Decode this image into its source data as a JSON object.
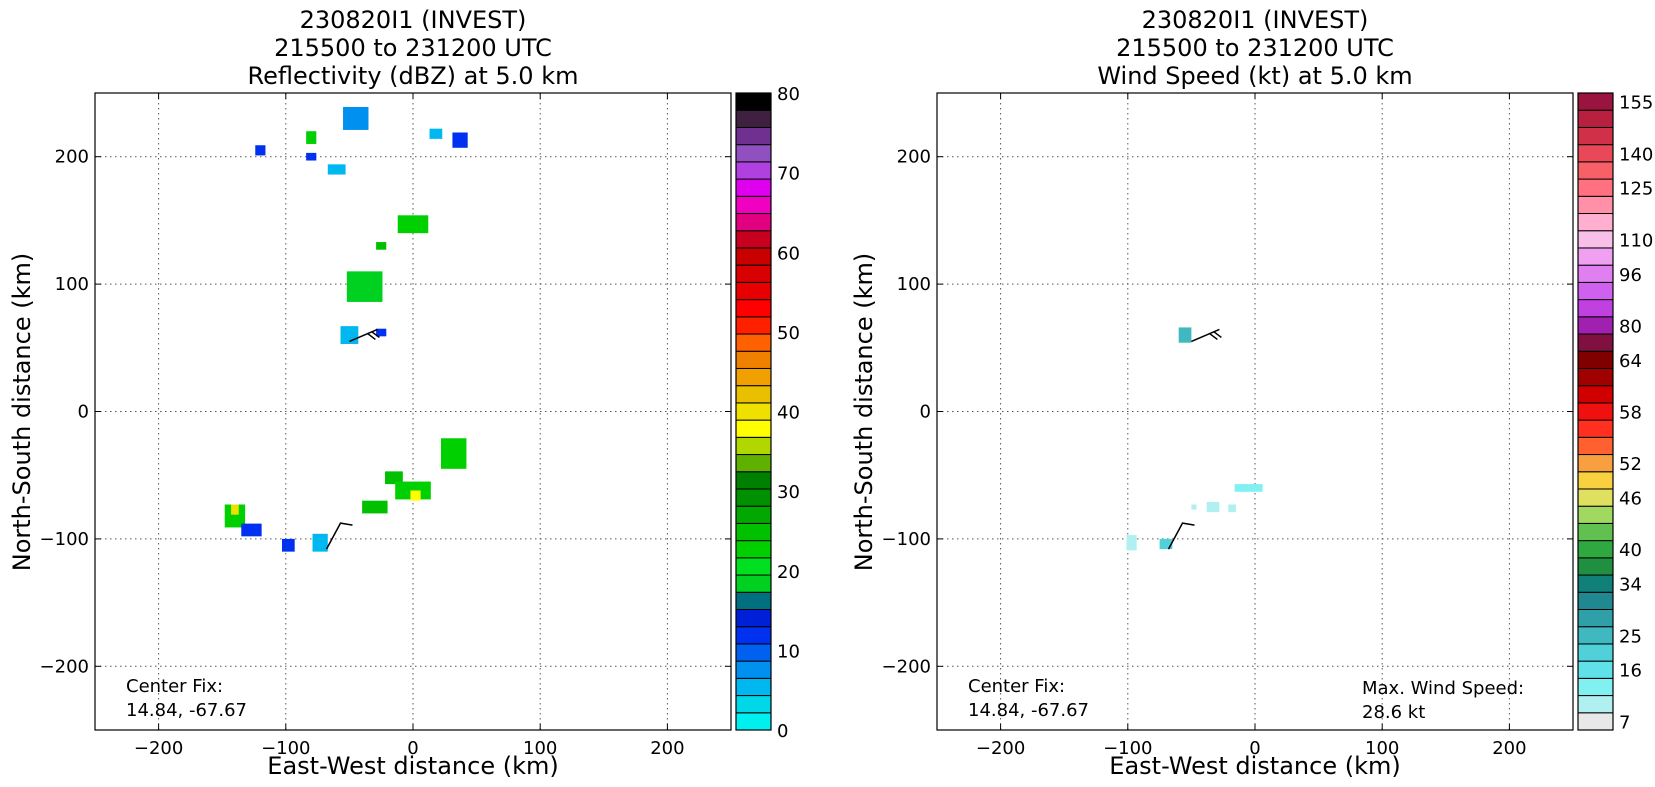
{
  "chart_data": [
    {
      "type": "heatmap",
      "title_lines": [
        "230820I1 (INVEST)",
        "215500 to 231200 UTC",
        "Reflectivity (dBZ) at 5.0 km"
      ],
      "xlabel": "East-West distance (km)",
      "ylabel": "North-South distance (km)",
      "xlim": [
        -250,
        250
      ],
      "ylim": [
        -250,
        250
      ],
      "xticks": [
        -200,
        -100,
        0,
        100,
        200
      ],
      "yticks": [
        -200,
        -100,
        0,
        100,
        200
      ],
      "xtick_labels": [
        "−200",
        "−100",
        "0",
        "100",
        "200"
      ],
      "ytick_labels": [
        "−200",
        "−100",
        "0",
        "100",
        "200"
      ],
      "grid": true,
      "annotation_left": [
        "Center Fix:",
        "14.84, -67.67"
      ],
      "colorbar": {
        "min": 0,
        "max": 80,
        "tick_values": [
          0,
          10,
          20,
          30,
          40,
          50,
          60,
          70,
          80
        ],
        "tick_labels": [
          "0",
          "10",
          "20",
          "30",
          "40",
          "50",
          "60",
          "70",
          "80"
        ],
        "colors": [
          "#00f0f0",
          "#00d8e8",
          "#00b8f0",
          "#0090f0",
          "#0060f0",
          "#0030f0",
          "#0020d8",
          "#007080",
          "#00d020",
          "#00e020",
          "#00d000",
          "#00c000",
          "#00a800",
          "#009000",
          "#008000",
          "#60b000",
          "#b0d800",
          "#ffff00",
          "#f0e000",
          "#e8c000",
          "#f0a000",
          "#f08000",
          "#ff6000",
          "#ff2000",
          "#ff0000",
          "#e80000",
          "#d80000",
          "#c80000",
          "#c80020",
          "#e00080",
          "#f000c0",
          "#e000f0",
          "#b040e0",
          "#9050c0",
          "#703090",
          "#402040",
          "#000000"
        ]
      },
      "echo_clusters": [
        {
          "x": -45,
          "y": 230,
          "dx": 20,
          "dy": 18,
          "value": 8
        },
        {
          "x": -120,
          "y": 205,
          "dx": 8,
          "dy": 8,
          "value": 12
        },
        {
          "x": -80,
          "y": 215,
          "dx": 8,
          "dy": 10,
          "value": 22
        },
        {
          "x": -80,
          "y": 200,
          "dx": 8,
          "dy": 6,
          "value": 12
        },
        {
          "x": -60,
          "y": 190,
          "dx": 14,
          "dy": 8,
          "value": 5
        },
        {
          "x": 18,
          "y": 218,
          "dx": 10,
          "dy": 8,
          "value": 6
        },
        {
          "x": 37,
          "y": 213,
          "dx": 12,
          "dy": 12,
          "value": 12
        },
        {
          "x": 0,
          "y": 147,
          "dx": 24,
          "dy": 14,
          "value": 22
        },
        {
          "x": -25,
          "y": 130,
          "dx": 8,
          "dy": 6,
          "value": 24
        },
        {
          "x": -38,
          "y": 98,
          "dx": 28,
          "dy": 24,
          "value": 18
        },
        {
          "x": -50,
          "y": 60,
          "dx": 14,
          "dy": 14,
          "value": 5
        },
        {
          "x": -25,
          "y": 62,
          "dx": 8,
          "dy": 6,
          "value": 12
        },
        {
          "x": 32,
          "y": -33,
          "dx": 20,
          "dy": 24,
          "value": 22
        },
        {
          "x": -15,
          "y": -52,
          "dx": 14,
          "dy": 10,
          "value": 24
        },
        {
          "x": 0,
          "y": -62,
          "dx": 28,
          "dy": 14,
          "value": 22
        },
        {
          "x": 2,
          "y": -66,
          "dx": 8,
          "dy": 8,
          "value": 38
        },
        {
          "x": -30,
          "y": -75,
          "dx": 20,
          "dy": 10,
          "value": 24
        },
        {
          "x": -140,
          "y": -82,
          "dx": 16,
          "dy": 18,
          "value": 22
        },
        {
          "x": -140,
          "y": -77,
          "dx": 6,
          "dy": 8,
          "value": 40
        },
        {
          "x": -127,
          "y": -93,
          "dx": 16,
          "dy": 10,
          "value": 12
        },
        {
          "x": -98,
          "y": -105,
          "dx": 10,
          "dy": 10,
          "value": 12
        },
        {
          "x": -73,
          "y": -103,
          "dx": 12,
          "dy": 14,
          "value": 6
        }
      ],
      "wind_barbs": [
        {
          "x": -50,
          "y": 55
        },
        {
          "x": -68,
          "y": -108
        }
      ]
    },
    {
      "type": "heatmap",
      "title_lines": [
        "230820I1 (INVEST)",
        "215500 to 231200 UTC",
        "Wind Speed (kt) at 5.0 km"
      ],
      "xlabel": "East-West distance (km)",
      "ylabel": "North-South distance (km)",
      "xlim": [
        -250,
        250
      ],
      "ylim": [
        -250,
        250
      ],
      "xticks": [
        -200,
        -100,
        0,
        100,
        200
      ],
      "yticks": [
        -200,
        -100,
        0,
        100,
        200
      ],
      "xtick_labels": [
        "−200",
        "−100",
        "0",
        "100",
        "200"
      ],
      "ytick_labels": [
        "−200",
        "−100",
        "0",
        "100",
        "200"
      ],
      "grid": true,
      "annotation_left": [
        "Center Fix:",
        "14.84, -67.67"
      ],
      "annotation_right": [
        "Max. Wind Speed:",
        "28.6 kt"
      ],
      "colorbar": {
        "tick_labels": [
          "7",
          "16",
          "25",
          "34",
          "40",
          "46",
          "52",
          "58",
          "64",
          "80",
          "96",
          "110",
          "125",
          "140",
          "155"
        ],
        "colors": [
          "#e8e8e8",
          "#b0f0f0",
          "#80f0f0",
          "#60e0e8",
          "#50d0d8",
          "#40b8c0",
          "#30a0a8",
          "#208890",
          "#108078",
          "#209040",
          "#30a840",
          "#60c050",
          "#a0d860",
          "#e0e060",
          "#f8d040",
          "#f8a040",
          "#ff6030",
          "#ff3020",
          "#f01010",
          "#d00000",
          "#a00000",
          "#800000",
          "#801040",
          "#a020b0",
          "#c040e0",
          "#d060f0",
          "#e080f0",
          "#f0a0f0",
          "#f8c0e8",
          "#ffb0d0",
          "#ff90a8",
          "#ff7080",
          "#f86068",
          "#e84858",
          "#d03048",
          "#b82040",
          "#9a1440"
        ]
      },
      "wind_clusters": [
        {
          "x": -55,
          "y": 60,
          "dx": 10,
          "dy": 12,
          "value": 26
        },
        {
          "x": -5,
          "y": -60,
          "dx": 22,
          "dy": 6,
          "value": 14
        },
        {
          "x": -33,
          "y": -75,
          "dx": 10,
          "dy": 8,
          "value": 12
        },
        {
          "x": -18,
          "y": -76,
          "dx": 6,
          "dy": 6,
          "value": 12
        },
        {
          "x": -48,
          "y": -75,
          "dx": 4,
          "dy": 4,
          "value": 12
        },
        {
          "x": -97,
          "y": -103,
          "dx": 8,
          "dy": 12,
          "value": 12
        },
        {
          "x": -70,
          "y": -104,
          "dx": 10,
          "dy": 8,
          "value": 22
        }
      ],
      "wind_barbs": [
        {
          "x": -50,
          "y": 55
        },
        {
          "x": -68,
          "y": -108
        }
      ]
    }
  ]
}
